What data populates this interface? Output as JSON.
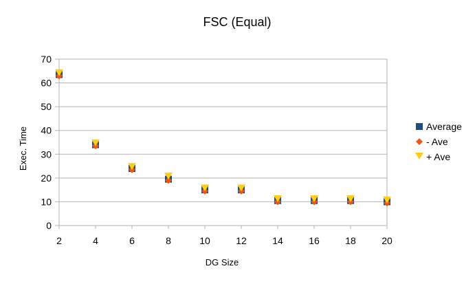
{
  "chart_data": {
    "type": "scatter",
    "title": "FSC (Equal)",
    "xlabel": "DG Size",
    "ylabel": "Exec. Time",
    "xlim": [
      2,
      20
    ],
    "ylim": [
      0,
      70
    ],
    "xticks": [
      2,
      4,
      6,
      8,
      10,
      12,
      14,
      16,
      18,
      20
    ],
    "yticks": [
      0,
      10,
      20,
      30,
      40,
      50,
      60,
      70
    ],
    "grid": "horizontal",
    "legend_position": "right",
    "series": [
      {
        "name": "Average",
        "marker": "square",
        "color": "#1f4e79",
        "x": [
          2,
          4,
          6,
          8,
          10,
          12,
          14,
          16,
          18,
          20
        ],
        "y": [
          63.5,
          34,
          24,
          19.5,
          15,
          15,
          10.5,
          10.5,
          10.5,
          10
        ]
      },
      {
        "name": "- Ave",
        "marker": "diamond",
        "color": "#e8561a",
        "x": [
          2,
          4,
          6,
          8,
          10,
          12,
          14,
          16,
          18,
          20
        ],
        "y": [
          63,
          33.5,
          23.5,
          19,
          14.5,
          14.5,
          10,
          10,
          10,
          9.5
        ]
      },
      {
        "name": "+ Ave",
        "marker": "triangle-down",
        "color": "#ffcc1a",
        "x": [
          2,
          4,
          6,
          8,
          10,
          12,
          14,
          16,
          18,
          20
        ],
        "y": [
          64,
          34.5,
          24.5,
          20.5,
          15.5,
          15.5,
          11,
          11,
          11,
          10.5
        ]
      }
    ]
  }
}
